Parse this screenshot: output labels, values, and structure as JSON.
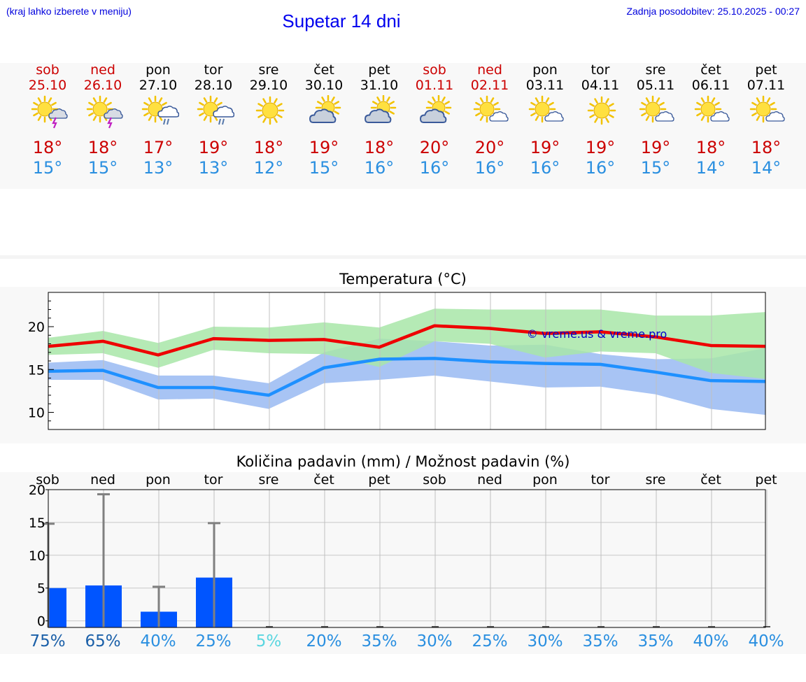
{
  "header": {
    "location_note": "(kraj lahko izberete v meniju)",
    "title": "Supetar 14 dni",
    "updated": "Zadnja posodobitev: 25.10.2025 - 00:27"
  },
  "days": [
    {
      "name": "sob",
      "date": "25.10",
      "weekend": true,
      "icon": "sun-cloud-storm-icon",
      "hi": "18°",
      "lo": "15°"
    },
    {
      "name": "ned",
      "date": "26.10",
      "weekend": true,
      "icon": "sun-cloud-storm-icon",
      "hi": "18°",
      "lo": "15°"
    },
    {
      "name": "pon",
      "date": "27.10",
      "weekend": false,
      "icon": "sun-cloud-rain-icon",
      "hi": "17°",
      "lo": "13°"
    },
    {
      "name": "tor",
      "date": "28.10",
      "weekend": false,
      "icon": "sun-cloud-rain-icon",
      "hi": "19°",
      "lo": "13°"
    },
    {
      "name": "sre",
      "date": "29.10",
      "weekend": false,
      "icon": "sun-icon",
      "hi": "18°",
      "lo": "12°"
    },
    {
      "name": "čet",
      "date": "30.10",
      "weekend": false,
      "icon": "cloud-sun-icon",
      "hi": "19°",
      "lo": "15°"
    },
    {
      "name": "pet",
      "date": "31.10",
      "weekend": false,
      "icon": "cloud-sun-icon",
      "hi": "18°",
      "lo": "16°"
    },
    {
      "name": "sob",
      "date": "01.11",
      "weekend": true,
      "icon": "cloud-sun-icon",
      "hi": "20°",
      "lo": "16°"
    },
    {
      "name": "ned",
      "date": "02.11",
      "weekend": true,
      "icon": "sun-small-cloud-icon",
      "hi": "20°",
      "lo": "16°"
    },
    {
      "name": "pon",
      "date": "03.11",
      "weekend": false,
      "icon": "sun-small-cloud-icon",
      "hi": "19°",
      "lo": "16°"
    },
    {
      "name": "tor",
      "date": "04.11",
      "weekend": false,
      "icon": "sun-icon",
      "hi": "19°",
      "lo": "16°"
    },
    {
      "name": "sre",
      "date": "05.11",
      "weekend": false,
      "icon": "sun-small-cloud-icon",
      "hi": "19°",
      "lo": "15°"
    },
    {
      "name": "čet",
      "date": "06.11",
      "weekend": false,
      "icon": "sun-small-cloud-icon",
      "hi": "18°",
      "lo": "14°"
    },
    {
      "name": "pet",
      "date": "07.11",
      "weekend": false,
      "icon": "sun-small-cloud-icon",
      "hi": "18°",
      "lo": "14°"
    }
  ],
  "colors": {
    "weekend": "#cc0000",
    "weekday": "#000000",
    "hi_line": "#ee0000",
    "lo_line": "#1e90ff",
    "hi_band": "#a8e6a8",
    "lo_band": "#a8c4f4",
    "overlap_band": "#80c8a8",
    "bar": "#0055ff",
    "whisker": "#808080"
  },
  "chart_data": [
    {
      "type": "line",
      "title": "Temperatura (°C)",
      "watermark": "© vreme.us & vreme.pro",
      "x": [
        0,
        1,
        2,
        3,
        4,
        5,
        6,
        7,
        8,
        9,
        10,
        11,
        12,
        13
      ],
      "ylim": [
        8,
        24
      ],
      "yticks": [
        10,
        15,
        20
      ],
      "grid": true,
      "series": [
        {
          "key": "max",
          "values": [
            17.7,
            18.3,
            16.7,
            18.6,
            18.4,
            18.5,
            17.6,
            20.1,
            19.8,
            19.2,
            19.4,
            18.8,
            17.8,
            17.7
          ],
          "band_low": [
            16.7,
            16.9,
            15.2,
            17.3,
            16.9,
            16.8,
            15.3,
            18.3,
            18.0,
            16.4,
            17.1,
            16.9,
            14.6,
            13.9
          ],
          "band_high": [
            18.7,
            19.5,
            18.1,
            20.0,
            19.9,
            20.5,
            19.9,
            22.1,
            22.0,
            22.0,
            22.0,
            21.3,
            21.3,
            21.7
          ]
        },
        {
          "key": "min",
          "values": [
            14.8,
            14.9,
            12.9,
            12.9,
            12.0,
            15.2,
            16.2,
            16.3,
            15.9,
            15.7,
            15.6,
            14.7,
            13.7,
            13.6
          ],
          "band_low": [
            13.8,
            13.8,
            11.5,
            11.6,
            10.4,
            13.4,
            13.8,
            14.3,
            13.6,
            12.9,
            13.0,
            12.1,
            10.4,
            9.7
          ],
          "band_high": [
            15.8,
            16.1,
            14.3,
            14.3,
            13.4,
            17.0,
            18.6,
            18.3,
            17.8,
            17.9,
            16.8,
            16.2,
            16.3,
            17.5
          ]
        }
      ]
    },
    {
      "type": "bar",
      "title": "Količina padavin (mm) / Možnost padavin (%)",
      "categories": [
        "sob",
        "ned",
        "pon",
        "tor",
        "sre",
        "čet",
        "pet",
        "sob",
        "ned",
        "pon",
        "tor",
        "sre",
        "čet",
        "pet"
      ],
      "values": [
        5.0,
        5.4,
        1.4,
        6.6,
        0,
        0,
        0,
        0,
        0,
        0,
        0,
        0,
        0,
        0
      ],
      "whisker_max": [
        14.8,
        19.3,
        5.2,
        14.9,
        0,
        0,
        0,
        0,
        0,
        0,
        0,
        0,
        0,
        0
      ],
      "probability": [
        "75%",
        "65%",
        "40%",
        "25%",
        "5%",
        "20%",
        "35%",
        "30%",
        "25%",
        "30%",
        "35%",
        "35%",
        "40%",
        "40%"
      ],
      "probability_colors": [
        "#1a5fa8",
        "#1a5fa8",
        "#2a8fe0",
        "#2a8fe0",
        "#5ad6e0",
        "#2a8fe0",
        "#2a8fe0",
        "#2a8fe0",
        "#2a8fe0",
        "#2a8fe0",
        "#2a8fe0",
        "#2a8fe0",
        "#2a8fe0",
        "#2a8fe0"
      ],
      "ylim": [
        -1,
        20
      ],
      "yticks": [
        0,
        5,
        10,
        15,
        20
      ],
      "grid": true
    }
  ]
}
